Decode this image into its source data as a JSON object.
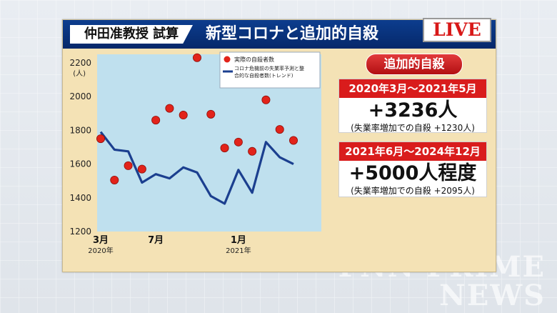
{
  "header": {
    "tag": "仲田准教授 試算",
    "title": "新型コロナと追加的自殺",
    "live": "LIVE"
  },
  "summary": {
    "badge": "追加的自殺",
    "cards": [
      {
        "period": "2020年3月～2021年5月",
        "value": "+3236人",
        "note": "(失業率増加での自殺 +1230人)"
      },
      {
        "period": "2021年6月～2024年12月",
        "value": "+5000人程度",
        "note": "(失業率増加での自殺 +2095人)"
      }
    ]
  },
  "watermark": {
    "line1": "FNN PRIME",
    "line2": "NEWS"
  },
  "chart_data": {
    "type": "line",
    "y_unit": "(人)",
    "ylim": [
      1200,
      2250
    ],
    "yticks": [
      1200,
      1400,
      1600,
      1800,
      2000,
      2200
    ],
    "x_labels": [
      {
        "index": 0,
        "month": "3月",
        "year": "2020年"
      },
      {
        "index": 4,
        "month": "7月",
        "year": ""
      },
      {
        "index": 10,
        "month": "1月",
        "year": "2021年"
      }
    ],
    "legend": [
      "実際の自殺者数",
      "コロナ危機前の失業率予測と整合的な自殺者数(トレンド)"
    ],
    "legend_position": "top-right",
    "grid": false,
    "colors": {
      "actual": "#e2231a",
      "trend": "#1b3f8f",
      "plot_bg": "#bfe0ee"
    },
    "series": [
      {
        "name": "実際の自殺者数",
        "kind": "scatter",
        "values": [
          1750,
          1505,
          1590,
          1570,
          1860,
          1930,
          1890,
          2230,
          1895,
          1695,
          1730,
          1675,
          1980,
          1805,
          1740
        ]
      },
      {
        "name": "コロナ危機前の失業率予測と整合的な自殺者数(トレンド)",
        "kind": "line",
        "values": [
          1790,
          1685,
          1675,
          1490,
          1540,
          1515,
          1580,
          1550,
          1410,
          1365,
          1565,
          1430,
          1730,
          1640,
          1600
        ]
      }
    ]
  }
}
